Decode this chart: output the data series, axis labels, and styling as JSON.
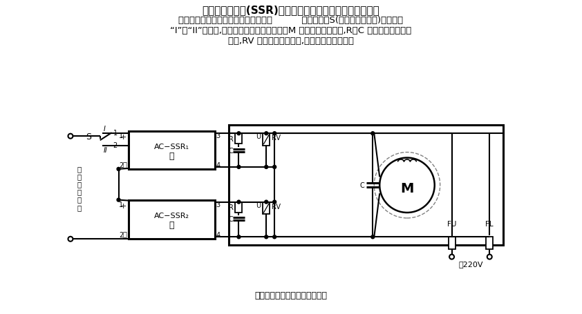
{
  "title_main": "利用固态继电器(SSR)的单相交流电动机的正反转控制电路",
  "text_line1": "单向交流电动机的正反转控制电路如图          所示。开关S(可采用电子开关)分别置于",
  "text_line2": "“I”、“II”位置时,电动机分别为正转和反转。M 为单向交流电动机,R、C 串联组成外加吸收",
  "text_line3": "电路,RV 为氧化锡压敏电阰,起过电压保护作用。",
  "caption": "单相交流电动机正反转控制电路",
  "bg_color": "#ffffff",
  "line_color": "#000000",
  "font_size_title": 11,
  "font_size_body": 10,
  "font_size_caption": 9
}
